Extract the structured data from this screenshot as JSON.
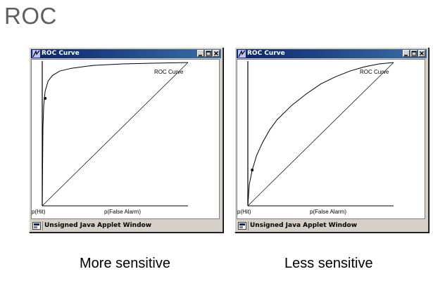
{
  "slide": {
    "title": "ROC"
  },
  "windows": [
    {
      "title": "ROC Curve",
      "curve_label": "ROC Curve",
      "y_axis_label": "p(Hit)",
      "x_axis_label": "p(False Alarm)",
      "status": "Unsigned Java Applet Window",
      "caption": "More sensitive"
    },
    {
      "title": "ROC Curve",
      "curve_label": "ROC Curve",
      "y_axis_label": "p(Hit)",
      "x_axis_label": "p(False Alarm)",
      "status": "Unsigned Java Applet Window",
      "caption": "Less sensitive"
    }
  ],
  "chart_data": [
    {
      "type": "line",
      "title": "ROC Curve",
      "xlabel": "p(False Alarm)",
      "ylabel": "p(Hit)",
      "xlim": [
        0,
        1
      ],
      "ylim": [
        0,
        1
      ],
      "series": [
        {
          "name": "ROC Curve",
          "x": [
            0,
            0.005,
            0.01,
            0.02,
            0.04,
            0.07,
            0.12,
            0.2,
            0.35,
            0.55,
            0.75,
            1.0
          ],
          "y": [
            0,
            0.55,
            0.7,
            0.8,
            0.87,
            0.91,
            0.94,
            0.96,
            0.98,
            0.99,
            0.995,
            1.0
          ]
        }
      ],
      "diagonal": true,
      "marker_point": {
        "x": 0.02,
        "y": 0.75
      }
    },
    {
      "type": "line",
      "title": "ROC Curve",
      "xlabel": "p(False Alarm)",
      "ylabel": "p(Hit)",
      "xlim": [
        0,
        1
      ],
      "ylim": [
        0,
        1
      ],
      "series": [
        {
          "name": "ROC Curve",
          "x": [
            0,
            0.01,
            0.03,
            0.06,
            0.1,
            0.15,
            0.2,
            0.3,
            0.4,
            0.5,
            0.6,
            0.7,
            0.8,
            0.9,
            1.0
          ],
          "y": [
            0,
            0.15,
            0.25,
            0.35,
            0.44,
            0.53,
            0.6,
            0.7,
            0.78,
            0.85,
            0.9,
            0.94,
            0.97,
            0.99,
            1.0
          ]
        }
      ],
      "diagonal": true,
      "marker_point": {
        "x": 0.03,
        "y": 0.25
      }
    }
  ]
}
